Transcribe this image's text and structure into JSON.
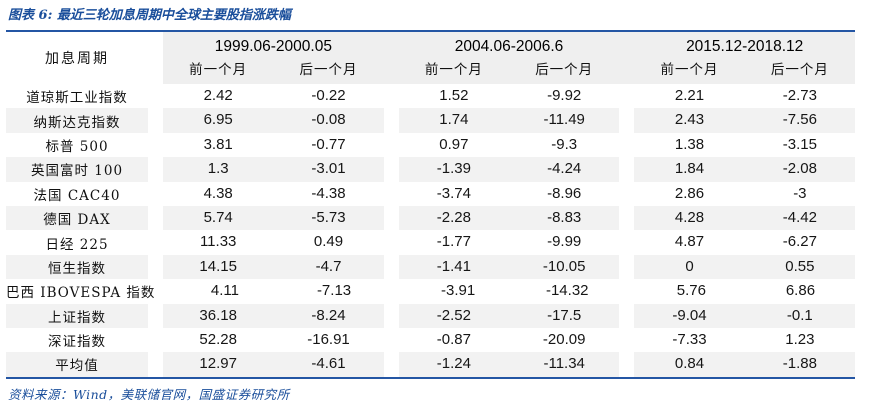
{
  "figure": {
    "title": "图表 6: 最近三轮加息周期中全球主要股指涨跌幅",
    "source": "资料来源：Wind，美联储官网，国盛证券研究所"
  },
  "table": {
    "corner_label": "加息周期",
    "periods": [
      "1999.06-2000.05",
      "2004.06-2006.6",
      "2015.12-2018.12"
    ],
    "sub_headers": [
      "前一个月",
      "后一个月"
    ],
    "rows": [
      {
        "name": "道琼斯工业指数",
        "values": [
          "2.42",
          "-0.22",
          "1.52",
          "-9.92",
          "2.21",
          "-2.73"
        ]
      },
      {
        "name": "纳斯达克指数",
        "values": [
          "6.95",
          "-0.08",
          "1.74",
          "-11.49",
          "2.43",
          "-7.56"
        ]
      },
      {
        "name": "标普 500",
        "values": [
          "3.81",
          "-0.77",
          "0.97",
          "-9.3",
          "1.38",
          "-3.15"
        ]
      },
      {
        "name": "英国富时 100",
        "values": [
          "1.3",
          "-3.01",
          "-1.39",
          "-4.24",
          "1.84",
          "-2.08"
        ]
      },
      {
        "name": "法国 CAC40",
        "values": [
          "4.38",
          "-4.38",
          "-3.74",
          "-8.96",
          "2.86",
          "-3"
        ]
      },
      {
        "name": "德国 DAX",
        "values": [
          "5.74",
          "-5.73",
          "-2.28",
          "-8.83",
          "4.28",
          "-4.42"
        ]
      },
      {
        "name": "日经 225",
        "values": [
          "11.33",
          "0.49",
          "-1.77",
          "-9.99",
          "4.87",
          "-6.27"
        ]
      },
      {
        "name": "恒生指数",
        "values": [
          "14.15",
          "-4.7",
          "-1.41",
          "-10.05",
          "0",
          "0.55"
        ]
      },
      {
        "name": "巴西 IBOVESPA 指数",
        "values": [
          "4.11",
          "-7.13",
          "-3.91",
          "-14.32",
          "5.76",
          "6.86"
        ]
      },
      {
        "name": "上证指数",
        "values": [
          "36.18",
          "-8.24",
          "-2.52",
          "-17.5",
          "-9.04",
          "-0.1"
        ]
      },
      {
        "name": "深证指数",
        "values": [
          "52.28",
          "-16.91",
          "-0.87",
          "-20.09",
          "-7.33",
          "1.23"
        ]
      },
      {
        "name": "平均值",
        "values": [
          "12.97",
          "-4.61",
          "-1.24",
          "-11.34",
          "0.84",
          "-1.88"
        ]
      }
    ]
  },
  "colors": {
    "accent_blue": "#2456A4",
    "title_blue": "#1A4E9B",
    "header_gray": "#EFEFEF",
    "stripe_gray": "#F2F2F2"
  }
}
